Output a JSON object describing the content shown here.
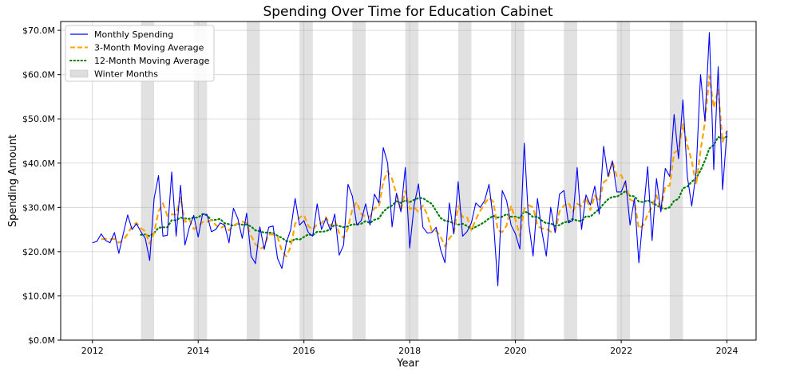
{
  "chart_data": {
    "type": "line",
    "title": "Spending Over Time for Education Cabinet",
    "xlabel": "Year",
    "ylabel": "Spending Amount",
    "x_start": "2012-01",
    "xlim": [
      2011.4,
      2024.55
    ],
    "ylim": [
      0,
      72
    ],
    "x_ticks": [
      2012,
      2014,
      2016,
      2018,
      2020,
      2022,
      2024
    ],
    "x_tick_labels": [
      "2012",
      "2014",
      "2016",
      "2018",
      "2020",
      "2022",
      "2024"
    ],
    "y_ticks": [
      0,
      10,
      20,
      30,
      40,
      50,
      60,
      70
    ],
    "y_tick_labels": [
      "$0.0M",
      "$10.0M",
      "$20.0M",
      "$30.0M",
      "$40.0M",
      "$50.0M",
      "$60.0M",
      "$70.0M"
    ],
    "grid": true,
    "legend_position": "top-left",
    "winter_bands": [
      [
        2012.917,
        2013.167
      ],
      [
        2013.917,
        2014.167
      ],
      [
        2014.917,
        2015.167
      ],
      [
        2015.917,
        2016.167
      ],
      [
        2016.917,
        2017.167
      ],
      [
        2017.917,
        2018.167
      ],
      [
        2018.917,
        2019.167
      ],
      [
        2019.917,
        2020.167
      ],
      [
        2020.917,
        2021.167
      ],
      [
        2021.917,
        2022.167
      ],
      [
        2022.917,
        2023.167
      ]
    ],
    "series": [
      {
        "name": "Monthly Spending",
        "color": "#0000ff",
        "style": "solid",
        "values": [
          22.0,
          22.3,
          24.0,
          22.5,
          22.0,
          24.3,
          19.6,
          24.0,
          28.3,
          25.0,
          26.3,
          24.5,
          23.0,
          18.0,
          32.0,
          37.2,
          23.5,
          23.7,
          38.0,
          23.5,
          35.0,
          21.5,
          25.5,
          28.2,
          23.3,
          28.5,
          28.4,
          24.5,
          25.0,
          26.5,
          26.0,
          22.0,
          29.8,
          27.5,
          23.0,
          28.7,
          19.0,
          17.3,
          25.6,
          20.5,
          25.5,
          25.8,
          18.5,
          16.2,
          22.0,
          25.0,
          32.0,
          26.0,
          27.0,
          24.3,
          23.5,
          30.8,
          25.0,
          27.6,
          24.8,
          28.5,
          19.2,
          21.5,
          35.2,
          32.5,
          26.0,
          27.0,
          30.8,
          26.0,
          33.0,
          31.0,
          43.5,
          40.0,
          25.6,
          33.2,
          29.0,
          39.0,
          20.8,
          30.5,
          35.3,
          25.5,
          24.2,
          24.3,
          25.5,
          20.5,
          17.5,
          31.0,
          24.0,
          35.8,
          23.5,
          24.5,
          26.5,
          31.0,
          30.0,
          31.5,
          35.2,
          27.0,
          12.3,
          33.8,
          31.5,
          26.0,
          24.0,
          20.6,
          44.5,
          26.5,
          19.0,
          32.0,
          24.5,
          19.0,
          30.0,
          24.3,
          33.0,
          33.8,
          26.5,
          27.0,
          39.0,
          25.0,
          32.8,
          30.5,
          34.8,
          28.5,
          43.8,
          37.0,
          40.5,
          33.5,
          33.5,
          36.0,
          26.0,
          32.0,
          17.5,
          28.5,
          39.2,
          22.5,
          36.5,
          29.0,
          38.8,
          37.0,
          51.0,
          41.0,
          54.3,
          37.0,
          30.3,
          38.0,
          60.0,
          49.5,
          69.5,
          38.5,
          61.8,
          34.0,
          47.3
        ]
      },
      {
        "name": "3-Month Moving Average",
        "color": "#ffa500",
        "style": "dashed",
        "values": [
          null,
          null,
          22.8,
          22.9,
          22.8,
          22.9,
          22.0,
          22.6,
          24.0,
          25.8,
          26.5,
          25.3,
          24.6,
          21.8,
          24.3,
          29.1,
          30.9,
          28.1,
          28.4,
          28.4,
          32.2,
          26.7,
          27.3,
          25.1,
          25.7,
          26.7,
          26.7,
          27.1,
          26.0,
          25.3,
          25.8,
          24.8,
          25.9,
          26.4,
          26.8,
          26.4,
          23.6,
          21.7,
          20.6,
          21.1,
          23.9,
          23.9,
          23.3,
          20.2,
          18.9,
          21.1,
          26.3,
          27.7,
          28.3,
          25.8,
          24.9,
          26.2,
          26.4,
          27.8,
          25.8,
          27.0,
          24.2,
          23.1,
          25.3,
          29.7,
          31.2,
          28.5,
          27.9,
          27.9,
          29.9,
          30.0,
          35.8,
          38.2,
          36.4,
          33.0,
          29.3,
          33.7,
          29.6,
          30.1,
          28.9,
          30.4,
          28.3,
          24.7,
          24.7,
          23.4,
          21.2,
          23.0,
          24.2,
          30.3,
          27.8,
          27.9,
          24.8,
          27.3,
          29.2,
          30.8,
          32.2,
          31.2,
          24.8,
          24.4,
          25.9,
          30.4,
          27.2,
          23.5,
          29.7,
          30.5,
          30.0,
          25.8,
          25.2,
          25.2,
          24.5,
          24.4,
          29.1,
          30.4,
          31.1,
          29.1,
          30.8,
          30.3,
          32.3,
          29.4,
          32.7,
          31.3,
          35.7,
          36.4,
          40.4,
          37.0,
          37.3,
          35.0,
          31.8,
          31.3,
          25.2,
          26.0,
          28.4,
          30.1,
          32.7,
          29.3,
          34.8,
          34.9,
          42.3,
          43.0,
          48.8,
          44.1,
          40.5,
          35.1,
          42.8,
          49.2,
          59.7,
          52.5,
          56.6,
          44.8,
          47.3
        ]
      },
      {
        "name": "12-Month Moving Average",
        "color": "#008000",
        "style": "dotted",
        "values": [
          null,
          null,
          null,
          null,
          null,
          null,
          null,
          null,
          null,
          null,
          null,
          23.8,
          23.9,
          23.5,
          24.2,
          25.4,
          25.5,
          25.5,
          27.1,
          27.1,
          27.7,
          27.5,
          27.4,
          27.7,
          27.7,
          28.5,
          28.2,
          27.1,
          27.2,
          27.4,
          26.4,
          26.2,
          25.8,
          26.3,
          26.1,
          26.1,
          25.7,
          24.8,
          24.6,
          24.3,
          24.3,
          24.2,
          23.6,
          23.1,
          22.4,
          22.2,
          22.9,
          22.7,
          23.3,
          23.9,
          23.7,
          24.5,
          24.5,
          24.6,
          25.1,
          26.1,
          25.8,
          25.5,
          25.7,
          26.2,
          26.1,
          26.3,
          26.9,
          26.5,
          27.2,
          27.5,
          29.0,
          29.9,
          30.4,
          31.4,
          31.0,
          31.6,
          31.2,
          31.7,
          32.1,
          32.1,
          31.4,
          30.8,
          29.2,
          27.6,
          27.0,
          26.8,
          26.4,
          26.1,
          26.3,
          25.8,
          25.1,
          25.6,
          26.1,
          26.7,
          27.5,
          28.1,
          27.7,
          27.9,
          28.5,
          27.9,
          27.9,
          27.6,
          29.1,
          28.7,
          27.8,
          27.9,
          27.0,
          26.4,
          26.4,
          25.8,
          26.0,
          26.6,
          26.8,
          27.4,
          27.0,
          26.9,
          28.0,
          27.9,
          28.8,
          29.6,
          30.8,
          31.8,
          32.4,
          32.4,
          33.0,
          33.7,
          32.6,
          32.5,
          31.3,
          31.2,
          31.6,
          31.1,
          30.5,
          29.9,
          29.7,
          30.0,
          31.5,
          31.9,
          34.3,
          34.7,
          35.8,
          36.6,
          38.3,
          40.6,
          43.3,
          44.1,
          45.9,
          45.6,
          46.0
        ]
      }
    ],
    "legend": [
      {
        "label": "Monthly Spending",
        "kind": "line",
        "color": "#0000ff",
        "style": "solid"
      },
      {
        "label": "3-Month Moving Average",
        "kind": "line",
        "color": "#ffa500",
        "style": "dashed"
      },
      {
        "label": "12-Month Moving Average",
        "kind": "line",
        "color": "#008000",
        "style": "dotted"
      },
      {
        "label": "Winter Months",
        "kind": "patch",
        "color": "#bdbdbd",
        "style": "fill"
      }
    ]
  }
}
